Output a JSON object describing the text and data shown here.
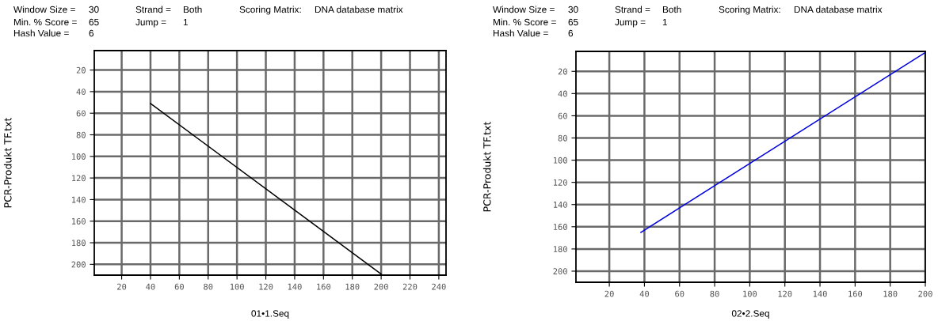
{
  "chart_data": [
    {
      "type": "line",
      "x": [
        40,
        200
      ],
      "xlabel": "01•1.Seq",
      "ylabel": "PCR-Produkt TF.txt",
      "xlim": [
        1,
        245
      ],
      "ylim": [
        210,
        2
      ],
      "xticks": [
        20,
        40,
        60,
        80,
        100,
        120,
        140,
        160,
        180,
        200,
        220,
        240
      ],
      "yticks": [
        20,
        40,
        60,
        80,
        100,
        120,
        140,
        160,
        180,
        200
      ],
      "grid": true,
      "series": [
        {
          "color": "#000000",
          "values": [
            51,
            209
          ]
        }
      ],
      "annotations": [
        "Window Size =",
        "30",
        "Strand =",
        "Both",
        "Scoring Matrix:",
        "DNA database matrix",
        "Min. % Score =",
        "65",
        "Jump =",
        "1",
        "Hash Value =",
        "6"
      ]
    },
    {
      "type": "line",
      "x": [
        38,
        200
      ],
      "xlabel": "02•2.Seq",
      "ylabel": "PCR-Produkt TF.txt",
      "xlim": [
        1,
        200
      ],
      "ylim": [
        210,
        2
      ],
      "xticks": [
        20,
        40,
        60,
        80,
        100,
        120,
        140,
        160,
        180,
        200
      ],
      "yticks": [
        20,
        40,
        60,
        80,
        100,
        120,
        140,
        160,
        180,
        200
      ],
      "grid": true,
      "series": [
        {
          "color": "#0000dd",
          "values": [
            165,
            3
          ]
        }
      ],
      "annotations": [
        "Window Size =",
        "30",
        "Strand =",
        "Both",
        "Scoring Matrix:",
        "DNA database matrix",
        "Min. % Score =",
        "65",
        "Jump =",
        "1",
        "Hash Value =",
        "6"
      ]
    }
  ]
}
